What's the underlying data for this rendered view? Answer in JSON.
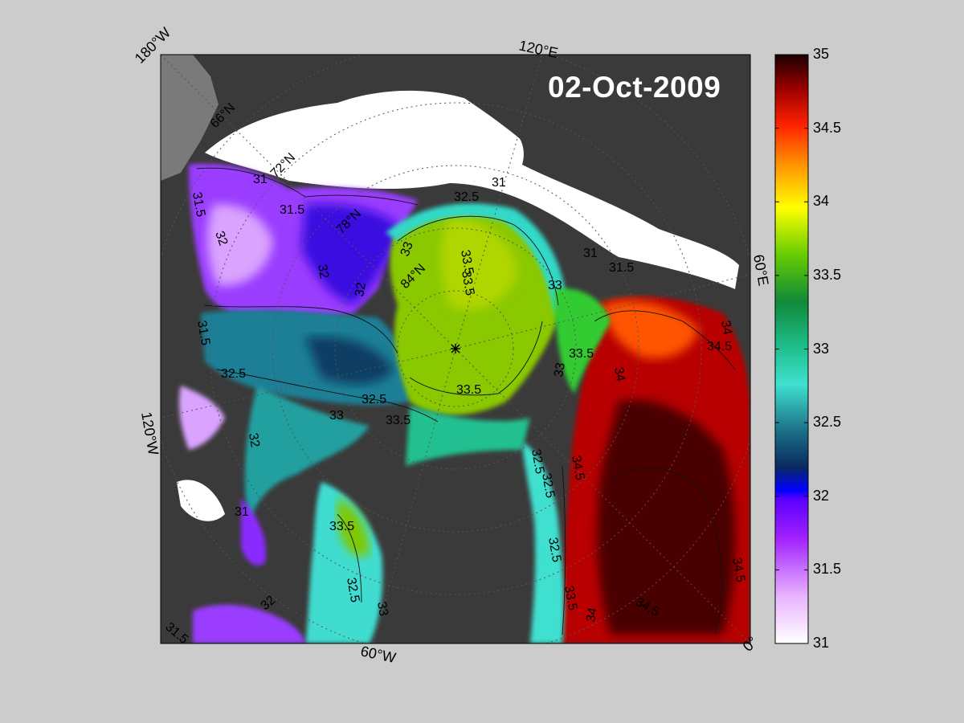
{
  "map": {
    "date": "02-Oct-2009",
    "edge_labels": {
      "lon_180w": "180°W",
      "lon_120e": "120°E",
      "lon_60e": "60°E",
      "lon_120w": "120°W",
      "lon_60w": "60°W",
      "lon_0": "0°"
    },
    "latitude_labels": [
      "66°N",
      "72°N",
      "78°N",
      "84°N"
    ],
    "contour_labels": [
      "31",
      "31.5",
      "32",
      "32.5",
      "33",
      "33.5",
      "34",
      "34.5"
    ],
    "colors": {
      "land": "#3a3a3a",
      "sea_ice": "#ffffff",
      "out_of_domain": "#7a7a7a",
      "background": "#cccccc"
    }
  },
  "colorbar": {
    "min": 31,
    "max": 35,
    "ticks": [
      "31",
      "31.5",
      "32",
      "32.5",
      "33",
      "33.5",
      "34",
      "34.5",
      "35"
    ],
    "colors": [
      "#ffffff",
      "#e2a0ff",
      "#9600ff",
      "#0000ff",
      "#0b3d5b",
      "#1f8fa0",
      "#40e0d0",
      "#20c090",
      "#10a040",
      "#8ad400",
      "#ffff00",
      "#ff9900",
      "#ff3300",
      "#cc0000",
      "#660000",
      "#1a0000"
    ]
  }
}
